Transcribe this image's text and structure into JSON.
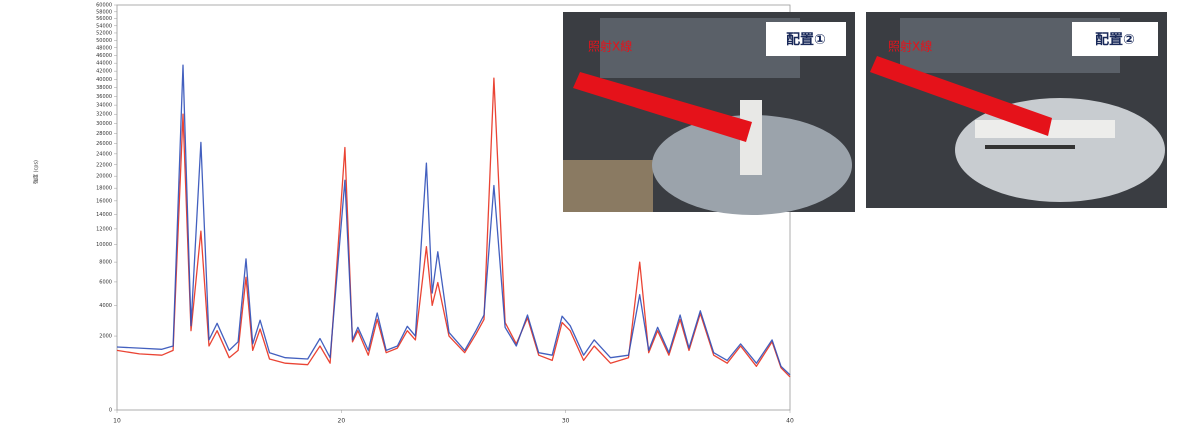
{
  "chart_data": {
    "type": "line",
    "y_label": "強度 (cps)",
    "x": [
      10,
      11,
      12,
      12.5,
      12.94,
      13.3,
      13.74,
      14.1,
      14.46,
      15,
      15.4,
      15.75,
      16.05,
      16.38,
      16.8,
      17.5,
      18.5,
      19.05,
      19.5,
      20.16,
      20.5,
      20.74,
      21.2,
      21.6,
      22,
      22.5,
      22.94,
      23.3,
      23.79,
      24.05,
      24.3,
      24.8,
      25.5,
      26,
      26.36,
      26.8,
      27.3,
      27.8,
      28.3,
      28.8,
      29.4,
      29.84,
      30.2,
      30.8,
      31.27,
      32,
      32.8,
      33.3,
      33.7,
      34.1,
      34.6,
      35.1,
      35.5,
      36,
      36.6,
      37.2,
      37.8,
      38.5,
      39.2,
      39.6,
      40
    ],
    "series": [
      {
        "color": "#e8301e",
        "values": [
          1300,
          1150,
          1100,
          1300,
          32000,
          2300,
          11700,
          1500,
          2300,
          1000,
          1300,
          6440,
          1300,
          2400,
          950,
          800,
          750,
          1500,
          800,
          25200,
          1700,
          2300,
          1100,
          3000,
          1200,
          1400,
          2300,
          1800,
          9750,
          4000,
          5950,
          2000,
          1200,
          2100,
          3000,
          40300,
          2800,
          1600,
          3100,
          1100,
          900,
          2800,
          2300,
          900,
          1500,
          800,
          1000,
          8000,
          1200,
          2300,
          1100,
          3000,
          1300,
          3400,
          1100,
          800,
          1500,
          700,
          1700,
          650,
          400
        ]
      },
      {
        "color": "#2f4fb8",
        "values": [
          1450,
          1400,
          1350,
          1500,
          43500,
          2600,
          26200,
          1800,
          2750,
          1300,
          1700,
          8350,
          1600,
          2950,
          1200,
          1000,
          950,
          1870,
          1000,
          19300,
          1800,
          2500,
          1300,
          3440,
          1300,
          1500,
          2560,
          2000,
          22300,
          5000,
          9150,
          2200,
          1300,
          2300,
          3300,
          18440,
          2500,
          1500,
          3300,
          1200,
          1100,
          3220,
          2600,
          1100,
          1800,
          1000,
          1100,
          4860,
          1300,
          2500,
          1200,
          3300,
          1400,
          3600,
          1200,
          900,
          1600,
          800,
          1800,
          700,
          450
        ]
      }
    ],
    "xlim": [
      10,
      40
    ],
    "xticks": [
      10,
      20,
      30,
      40
    ],
    "ylim": [
      0,
      60000
    ],
    "yscale": "sqrt",
    "yticks": [
      0,
      2000,
      4000,
      6000,
      8000,
      10000,
      12000,
      14000,
      16000,
      18000,
      20000,
      22000,
      24000,
      26000,
      28000,
      30000,
      32000,
      34000,
      36000,
      38000,
      40000,
      42000,
      44000,
      46000,
      48000,
      50000,
      52000,
      54000,
      56000,
      58000,
      60000
    ]
  },
  "photos": [
    {
      "beam_label": "照射X線",
      "badge": "配置①"
    },
    {
      "beam_label": "照射X線",
      "badge": "配置②"
    }
  ]
}
